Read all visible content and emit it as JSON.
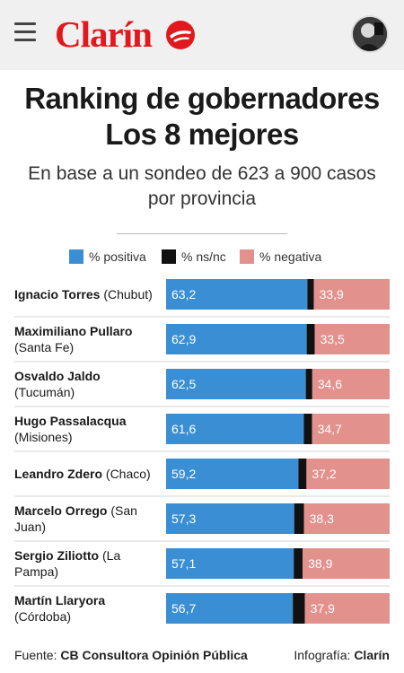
{
  "header": {
    "logo_text": "Clarín",
    "menu_icon": "hamburger-icon",
    "avatar_icon": "user-avatar",
    "brand_color": "#e0191e"
  },
  "title_line1": "Ranking de gobernadores",
  "title_line2": "Los 8 mejores",
  "subtitle_line1": "En base a un sondeo de 623 a 900 casos",
  "subtitle_line2": "por provincia",
  "legend": [
    {
      "label": "% positiva",
      "color": "#3a8fd4"
    },
    {
      "label": "% ns/nc",
      "color": "#111111"
    },
    {
      "label": "% negativa",
      "color": "#e2918d"
    }
  ],
  "chart_data": {
    "type": "bar",
    "orientation": "horizontal-stacked",
    "categories": [
      {
        "name": "Ignacio Torres",
        "province": "(Chubut)",
        "lines": [
          [
            "Ignacio Torres",
            " (Chubut)"
          ]
        ]
      },
      {
        "name": "Maximiliano Pullaro",
        "province": "(Santa Fe)",
        "lines": [
          [
            "Maximiliano Pullaro",
            ""
          ],
          [
            "",
            "(Santa Fe)"
          ]
        ]
      },
      {
        "name": "Osvaldo Jaldo",
        "province": "(Tucumán)",
        "lines": [
          [
            "Osvaldo Jaldo",
            ""
          ],
          [
            "",
            "(Tucumán)"
          ]
        ]
      },
      {
        "name": "Hugo Passalacqua",
        "province": "(Misiones)",
        "lines": [
          [
            "Hugo Passalacqua",
            ""
          ],
          [
            "",
            "(Misiones)"
          ]
        ]
      },
      {
        "name": "Leandro Zdero",
        "province": "(Chaco)",
        "lines": [
          [
            "Leandro Zdero",
            " (Chaco)"
          ]
        ]
      },
      {
        "name": "Marcelo Orrego",
        "province": "(San Juan)",
        "lines": [
          [
            "Marcelo Orrego",
            " (San"
          ],
          [
            "",
            "Juan)"
          ]
        ]
      },
      {
        "name": "Sergio Ziliotto",
        "province": "(La Pampa)",
        "lines": [
          [
            "Sergio Ziliotto",
            " (La"
          ],
          [
            "",
            "Pampa)"
          ]
        ]
      },
      {
        "name": "Martín Llaryora",
        "province": "(Córdoba)",
        "lines": [
          [
            "Martín Llaryora",
            ""
          ],
          [
            "",
            "(Córdoba)"
          ]
        ]
      }
    ],
    "series": [
      {
        "name": "% positiva",
        "color": "#3a8fd4",
        "values": [
          63.2,
          62.9,
          62.5,
          61.6,
          59.2,
          57.3,
          57.1,
          56.7
        ],
        "labels": [
          "63,2",
          "62,9",
          "62,5",
          "61,6",
          "59,2",
          "57,3",
          "57,1",
          "56,7"
        ]
      },
      {
        "name": "% ns/nc",
        "color": "#111111",
        "values": [
          2.9,
          3.6,
          2.9,
          3.7,
          3.6,
          4.4,
          4.0,
          5.4
        ]
      },
      {
        "name": "% negativa",
        "color": "#e2918d",
        "values": [
          33.9,
          33.5,
          34.6,
          34.7,
          37.2,
          38.3,
          38.9,
          37.9
        ],
        "labels": [
          "33,9",
          "33,5",
          "34,6",
          "34,7",
          "37,2",
          "38,3",
          "38,9",
          "37,9"
        ]
      }
    ],
    "xlim": [
      0,
      100
    ],
    "grid": false,
    "legend_position": "top"
  },
  "footer": {
    "source_prefix": "Fuente: ",
    "source_name": "CB Consultora Opinión Pública",
    "credit_prefix": "Infografía: ",
    "credit_name": "Clarín"
  }
}
